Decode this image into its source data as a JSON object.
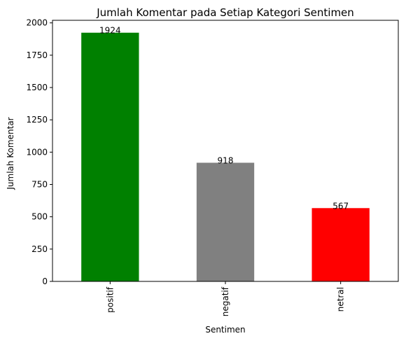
{
  "chart_data": {
    "type": "bar",
    "title": "Jumlah Komentar pada Setiap Kategori Sentimen",
    "xlabel": "Sentimen",
    "ylabel": "Jumlah Komentar",
    "categories": [
      "positif",
      "negatif",
      "netral"
    ],
    "values": [
      1924,
      918,
      567
    ],
    "value_labels": [
      "1924",
      "918",
      "567"
    ],
    "colors": [
      "#008000",
      "#808080",
      "#ff0000"
    ],
    "ylim": [
      0,
      2020
    ],
    "yticks": [
      0,
      250,
      500,
      750,
      1000,
      1250,
      1500,
      1750,
      2000
    ],
    "ytick_labels": [
      "0",
      "250",
      "500",
      "750",
      "1000",
      "1250",
      "1500",
      "1750",
      "2000"
    ],
    "grid": false,
    "legend": "none"
  }
}
